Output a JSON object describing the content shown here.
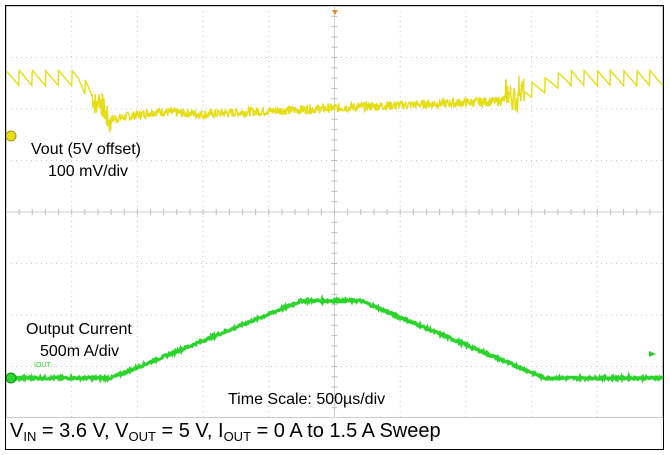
{
  "chart_data": {
    "type": "line",
    "title": "",
    "grid": true,
    "divisions": {
      "x": 10,
      "y": 8
    },
    "time_scale_label": "Time Scale: 500µs/div",
    "series": [
      {
        "name": "Vout (5V offset)",
        "scale_label": "100 mV/div",
        "color": "#e5de17",
        "x": [
          0,
          1.1,
          1.6,
          2.3,
          3.0,
          3.8,
          4.7,
          5.5,
          6.5,
          7.5,
          8.5,
          10
        ],
        "y": [
          6.6,
          6.6,
          5.8,
          5.95,
          5.9,
          5.95,
          6.0,
          6.05,
          6.1,
          6.15,
          6.6,
          6.6
        ]
      },
      {
        "name": "Output Current",
        "scale_label": "500m A/div",
        "color": "#2bd42b",
        "x": [
          0,
          1.6,
          4.5,
          5.4,
          8.2,
          10
        ],
        "y": [
          0.0,
          0.0,
          1.5,
          1.5,
          0.0,
          0.0
        ]
      }
    ],
    "trace_tag": "IOUT",
    "caption": {
      "parts": [
        {
          "t": "V",
          "s": "IN"
        },
        {
          "t": " = 3.6 V, V",
          "s": "OUT"
        },
        {
          "t": " = 5 V, I",
          "s": "OUT"
        },
        {
          "t": " = 0 A to 1.5 A Sweep",
          "s": ""
        }
      ]
    }
  }
}
